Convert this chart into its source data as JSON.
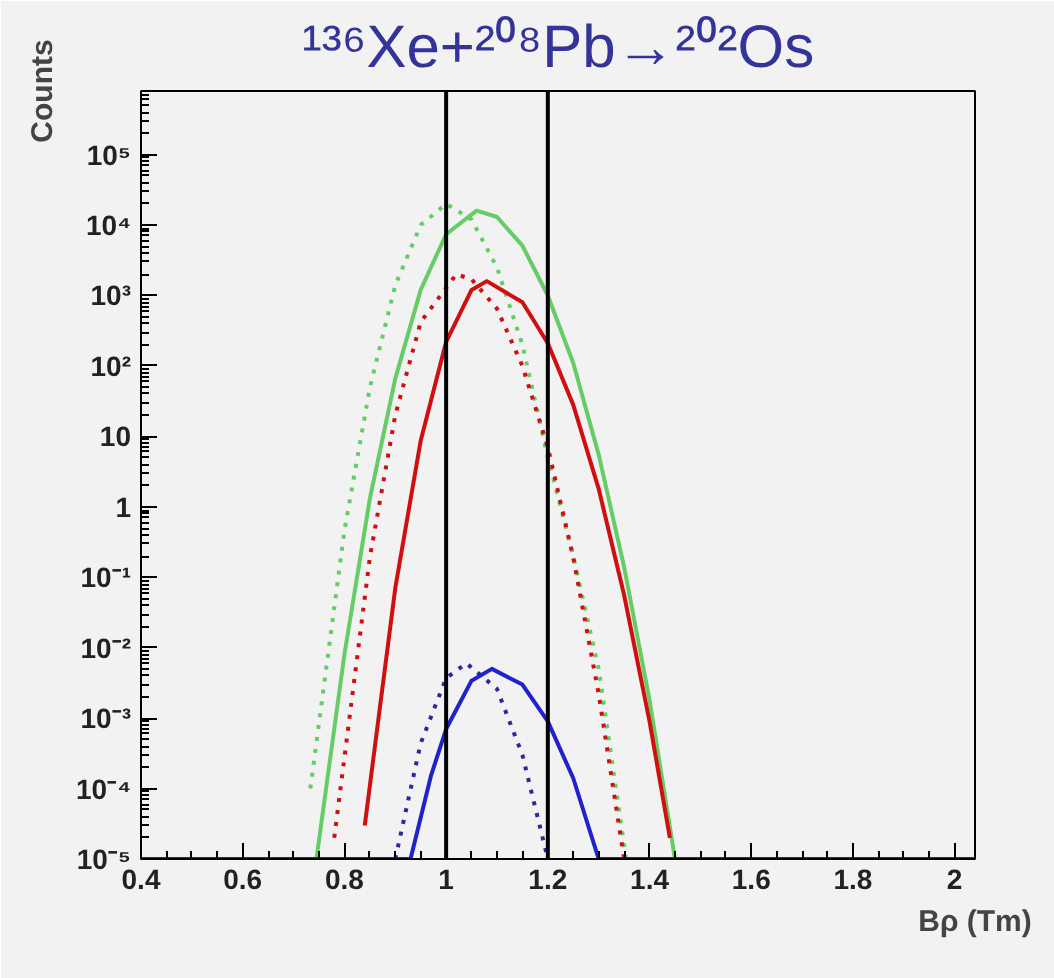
{
  "chart_data": {
    "type": "line",
    "title": "¹³⁶Xe+²⁰⁸Pb→²⁰²Os",
    "xlabel": "Bρ (Tm)",
    "ylabel": "Counts",
    "log": "y",
    "grid": false,
    "marker": "none",
    "xlim": [
      0.4,
      2.04
    ],
    "ylim": [
      1e-05,
      800000
    ],
    "xticks": [
      0.4,
      0.6,
      0.8,
      1,
      1.2,
      1.4,
      1.6,
      1.8,
      2
    ],
    "yticks": [
      {
        "value": 1e-05,
        "label": "10⁻⁵"
      },
      {
        "value": 0.0001,
        "label": "10⁻⁴"
      },
      {
        "value": 0.001,
        "label": "10⁻³"
      },
      {
        "value": 0.01,
        "label": "10⁻²"
      },
      {
        "value": 0.1,
        "label": "10⁻¹"
      },
      1,
      10,
      {
        "value": 100,
        "label": "10²"
      },
      {
        "value": 1000,
        "label": "10³"
      },
      {
        "value": 10000,
        "label": "10⁴"
      },
      {
        "value": 100000,
        "label": "10⁵"
      }
    ],
    "ref_lines": [
      {
        "axis": "x",
        "value": 1.0,
        "label": null,
        "color": "#000000"
      },
      {
        "axis": "x",
        "value": 1.2,
        "label": null,
        "color": "#000000"
      }
    ],
    "series": [
      {
        "color": "#66cc66",
        "line_style": "dotted",
        "x": [
          0.733,
          0.8,
          0.85,
          0.9,
          0.95,
          1.0,
          1.05,
          1.1,
          1.15,
          1.2,
          1.25,
          1.3,
          1.354
        ],
        "values": [
          0.0001,
          0.46,
          49,
          1400,
          10000,
          20000,
          12000,
          2500,
          200,
          5,
          0.2,
          0.005,
          1e-05
        ]
      },
      {
        "color": "#66cc66",
        "line_style": "solid",
        "x": [
          0.745,
          0.8,
          0.85,
          0.9,
          0.95,
          1.0,
          1.06,
          1.1,
          1.15,
          1.2,
          1.25,
          1.3,
          1.35,
          1.4,
          1.45
        ],
        "values": [
          1e-05,
          0.008,
          1.3,
          66,
          1200,
          7400,
          16000,
          13000,
          5100,
          1000,
          110,
          5.5,
          0.14,
          0.0018,
          1e-05
        ]
      },
      {
        "color": "#d01010",
        "line_style": "dotted",
        "x": [
          0.78,
          0.85,
          0.9,
          0.95,
          1.02,
          1.05,
          1.1,
          1.15,
          1.2,
          1.25,
          1.3,
          1.35
        ],
        "values": [
          2e-05,
          0.19,
          20,
          420,
          2000,
          1700,
          650,
          100,
          7,
          0.19,
          0.0022,
          1e-05
        ]
      },
      {
        "color": "#d01010",
        "line_style": "solid",
        "x": [
          0.84,
          0.9,
          0.95,
          1.0,
          1.05,
          1.08,
          1.15,
          1.2,
          1.25,
          1.3,
          1.35,
          1.4,
          1.44
        ],
        "values": [
          3e-05,
          0.07,
          8.7,
          220,
          1200,
          1600,
          800,
          210,
          28,
          1.8,
          0.056,
          0.0009,
          2e-05
        ]
      },
      {
        "color": "#2a2a9a",
        "line_style": "dotted",
        "x": [
          0.9,
          0.95,
          1.0,
          1.04,
          1.1,
          1.15,
          1.2
        ],
        "values": [
          1e-05,
          0.00044,
          0.0037,
          0.006,
          0.0026,
          0.0003,
          1e-05
        ]
      },
      {
        "color": "#2222cc",
        "line_style": "solid",
        "x": [
          0.4,
          0.93,
          0.97,
          1.0,
          1.05,
          1.09,
          1.15,
          1.2,
          1.25,
          1.3,
          2.04
        ],
        "values": [
          1e-05,
          1e-05,
          0.00015,
          0.0007,
          0.0034,
          0.005,
          0.003,
          0.0009,
          0.00014,
          1e-05,
          1e-05
        ]
      }
    ]
  }
}
